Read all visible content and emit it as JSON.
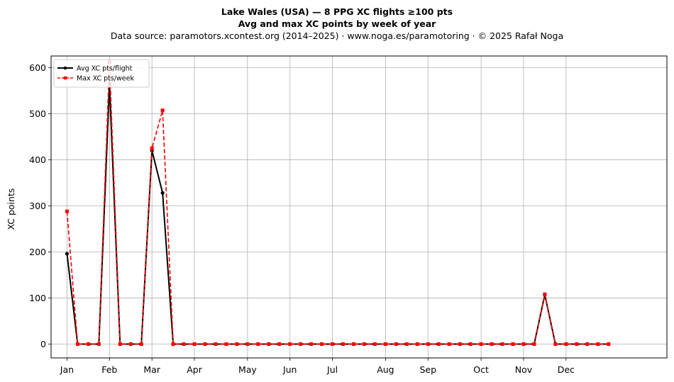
{
  "title": {
    "line1": "Lake Wales (USA)  —  8 PPG XC flights ≥100 pts",
    "line2": "Avg and max XC points by week of year",
    "line3": "Data source: paramotors.xcontest.org (2014–2025)  ·  www.noga.es/paramotoring  ·  © 2025 Rafał Noga"
  },
  "chart_data": {
    "type": "line",
    "ylabel": "XC points",
    "xlabel": "",
    "ylim": [
      -30,
      625
    ],
    "xlim": [
      -1.5,
      56.5
    ],
    "grid": true,
    "legend_position": "top-left",
    "yticks": [
      0,
      100,
      200,
      300,
      400,
      500,
      600
    ],
    "month_ticks": [
      {
        "label": "Jan",
        "week": 0
      },
      {
        "label": "Feb",
        "week": 4
      },
      {
        "label": "Mar",
        "week": 8
      },
      {
        "label": "Apr",
        "week": 12
      },
      {
        "label": "May",
        "week": 17
      },
      {
        "label": "Jun",
        "week": 21
      },
      {
        "label": "Jul",
        "week": 25
      },
      {
        "label": "Aug",
        "week": 30
      },
      {
        "label": "Sep",
        "week": 34
      },
      {
        "label": "Oct",
        "week": 39
      },
      {
        "label": "Nov",
        "week": 43
      },
      {
        "label": "Dec",
        "week": 47
      }
    ],
    "series": [
      {
        "name": "Avg XC pts/flight",
        "color": "#000000",
        "style": "solid",
        "marker": "circle",
        "x": [
          0,
          1,
          2,
          3,
          4,
          5,
          6,
          7,
          8,
          9,
          10,
          11,
          12,
          13,
          14,
          15,
          16,
          17,
          18,
          19,
          20,
          21,
          22,
          23,
          24,
          25,
          26,
          27,
          28,
          29,
          30,
          31,
          32,
          33,
          34,
          35,
          36,
          37,
          38,
          39,
          40,
          41,
          42,
          43,
          44,
          45,
          46,
          47,
          48,
          49,
          50,
          51
        ],
        "values": [
          196,
          0,
          0,
          0,
          565,
          0,
          0,
          0,
          420,
          328,
          0,
          0,
          0,
          0,
          0,
          0,
          0,
          0,
          0,
          0,
          0,
          0,
          0,
          0,
          0,
          0,
          0,
          0,
          0,
          0,
          0,
          0,
          0,
          0,
          0,
          0,
          0,
          0,
          0,
          0,
          0,
          0,
          0,
          0,
          0,
          107,
          0,
          0,
          0,
          0,
          0,
          0
        ]
      },
      {
        "name": "Max XC pts/week",
        "color": "#ff0000",
        "style": "dashed",
        "marker": "square",
        "x": [
          0,
          1,
          2,
          3,
          4,
          5,
          6,
          7,
          8,
          9,
          10,
          11,
          12,
          13,
          14,
          15,
          16,
          17,
          18,
          19,
          20,
          21,
          22,
          23,
          24,
          25,
          26,
          27,
          28,
          29,
          30,
          31,
          32,
          33,
          34,
          35,
          36,
          37,
          38,
          39,
          40,
          41,
          42,
          43,
          44,
          45,
          46,
          47,
          48,
          49,
          50,
          51
        ],
        "values": [
          288,
          0,
          0,
          0,
          612,
          0,
          0,
          0,
          425,
          507,
          0,
          0,
          0,
          0,
          0,
          0,
          0,
          0,
          0,
          0,
          0,
          0,
          0,
          0,
          0,
          0,
          0,
          0,
          0,
          0,
          0,
          0,
          0,
          0,
          0,
          0,
          0,
          0,
          0,
          0,
          0,
          0,
          0,
          0,
          0,
          108,
          0,
          0,
          0,
          0,
          0,
          0
        ]
      }
    ]
  }
}
